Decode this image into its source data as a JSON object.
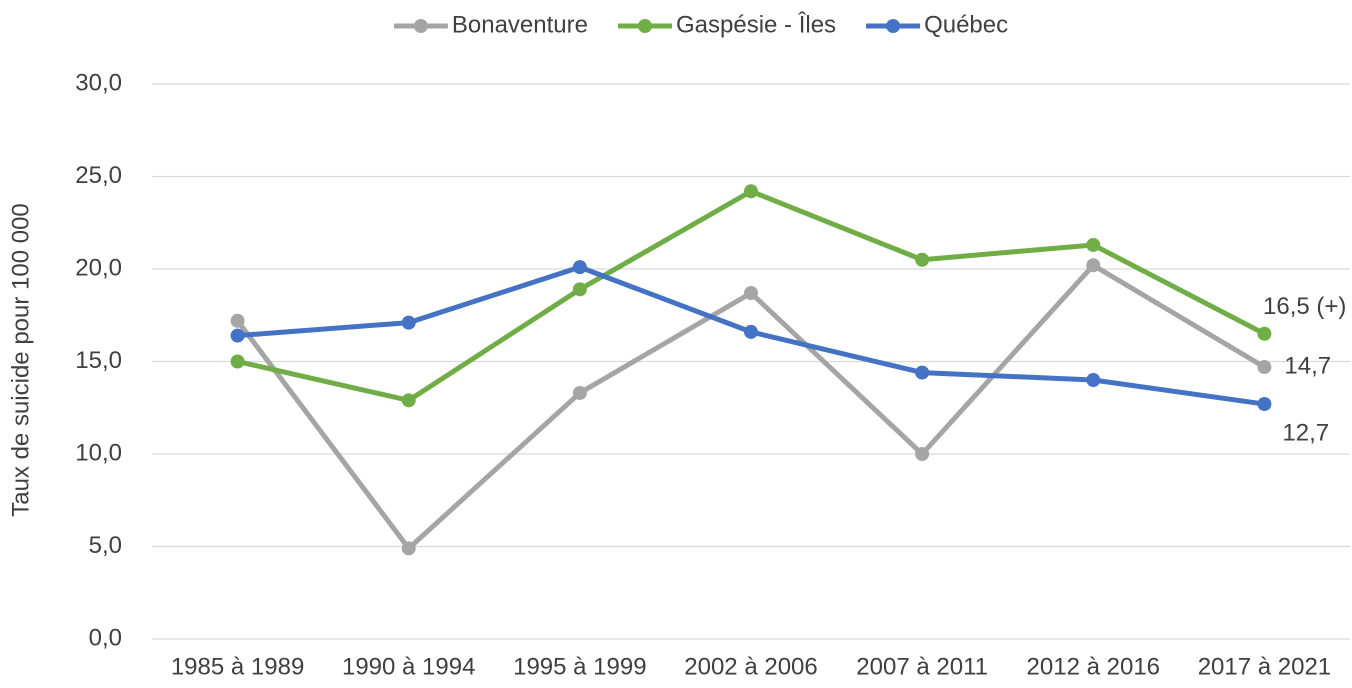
{
  "chart_data": {
    "type": "line",
    "y_label": "Taux de suicide pour 100 000",
    "categories": [
      "1985 à 1989",
      "1990 à 1994",
      "1995 à 1999",
      "2002 à 2006",
      "2007 à 2011",
      "2012 à 2016",
      "2017 à 2021"
    ],
    "series": [
      {
        "name": "Bonaventure",
        "color": "#a5a5a5",
        "values": [
          17.2,
          4.9,
          13.3,
          18.7,
          10.0,
          20.2,
          14.7
        ],
        "value_labels": [
          null,
          null,
          null,
          null,
          null,
          null,
          "14,7"
        ]
      },
      {
        "name": "Gaspésie - Îles",
        "color": "#70ad47",
        "values": [
          15.0,
          12.9,
          18.9,
          24.2,
          20.5,
          21.3,
          16.5
        ],
        "value_labels": [
          null,
          null,
          null,
          null,
          null,
          null,
          "16,5 (+)"
        ]
      },
      {
        "name": "Québec",
        "color": "#4472c4",
        "values": [
          16.4,
          17.1,
          20.1,
          16.6,
          14.4,
          14.0,
          12.7
        ],
        "value_labels": [
          null,
          null,
          null,
          null,
          null,
          null,
          "12,7"
        ]
      }
    ],
    "ylim": [
      0,
      30
    ],
    "yticks": [
      {
        "value": 0,
        "label": "0,0"
      },
      {
        "value": 5,
        "label": "5,0"
      },
      {
        "value": 10,
        "label": "10,0"
      },
      {
        "value": 15,
        "label": "15,0"
      },
      {
        "value": 20,
        "label": "20,0"
      },
      {
        "value": 25,
        "label": "25,0"
      },
      {
        "value": 30,
        "label": "30,0"
      }
    ],
    "grid": true,
    "legend": "top"
  }
}
